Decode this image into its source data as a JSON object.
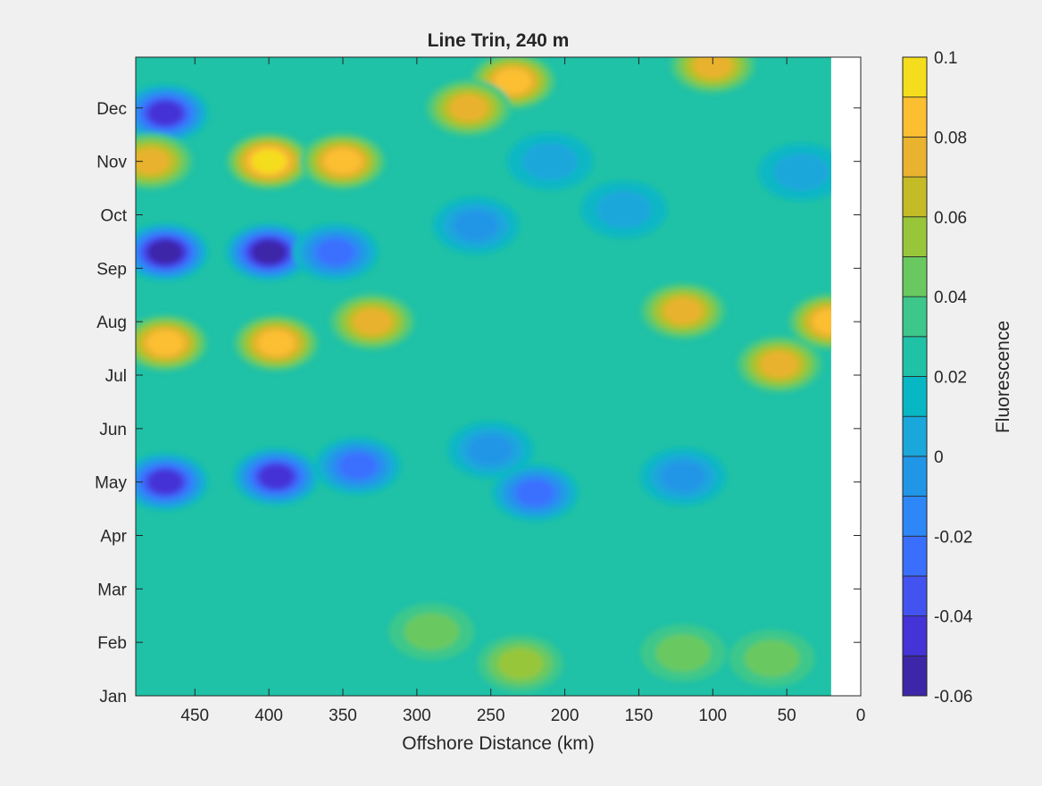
{
  "chart_data": {
    "type": "heatmap",
    "title": "Line Trin, 240 m",
    "xlabel": "Offshore Distance (km)",
    "ylabel": "",
    "x_direction": "reversed",
    "xlim": [
      0,
      490
    ],
    "x_ticks": [
      450,
      400,
      350,
      300,
      250,
      200,
      150,
      100,
      50,
      0
    ],
    "y_ticks": [
      "Jan",
      "Feb",
      "Mar",
      "Apr",
      "May",
      "Jun",
      "Jul",
      "Aug",
      "Sep",
      "Oct",
      "Nov",
      "Dec"
    ],
    "data_x_extent": [
      20,
      490
    ],
    "colorbar": {
      "label": "Fluorescence",
      "clim": [
        -0.06,
        0.1
      ],
      "ticks": [
        0.1,
        0.08,
        0.06,
        0.04,
        0.02,
        0,
        -0.02,
        -0.04,
        -0.06
      ],
      "levels": [
        -0.06,
        -0.05,
        -0.04,
        -0.03,
        -0.02,
        -0.01,
        0,
        0.01,
        0.02,
        0.03,
        0.04,
        0.05,
        0.06,
        0.07,
        0.08,
        0.09,
        0.1
      ],
      "colormap": [
        "#3e26a8",
        "#4433d6",
        "#4353ef",
        "#3a6ffe",
        "#2d87f7",
        "#2196e6",
        "#1aa7db",
        "#07b7c4",
        "#1fc1a7",
        "#3dc78b",
        "#69c960",
        "#98c63b",
        "#c4bb26",
        "#e9b22f",
        "#fcbf32",
        "#f4dd1c"
      ]
    },
    "features": [
      {
        "x": 470,
        "month": 10.9,
        "value": -0.04
      },
      {
        "x": 470,
        "month": 8.3,
        "value": -0.05
      },
      {
        "x": 400,
        "month": 8.3,
        "value": -0.06
      },
      {
        "x": 355,
        "month": 8.3,
        "value": -0.02
      },
      {
        "x": 400,
        "month": 10.0,
        "value": 0.09
      },
      {
        "x": 350,
        "month": 10.0,
        "value": 0.08
      },
      {
        "x": 480,
        "month": 10.0,
        "value": 0.07
      },
      {
        "x": 470,
        "month": 6.6,
        "value": 0.08
      },
      {
        "x": 395,
        "month": 6.6,
        "value": 0.08
      },
      {
        "x": 330,
        "month": 7.0,
        "value": 0.07
      },
      {
        "x": 470,
        "month": 4.0,
        "value": -0.04
      },
      {
        "x": 395,
        "month": 4.1,
        "value": -0.04
      },
      {
        "x": 340,
        "month": 4.3,
        "value": -0.02
      },
      {
        "x": 235,
        "month": 11.5,
        "value": 0.08
      },
      {
        "x": 265,
        "month": 11.0,
        "value": 0.07
      },
      {
        "x": 100,
        "month": 11.8,
        "value": 0.07
      },
      {
        "x": 55,
        "month": 6.2,
        "value": 0.07
      },
      {
        "x": 20,
        "month": 7.0,
        "value": 0.08
      },
      {
        "x": 120,
        "month": 7.2,
        "value": 0.07
      },
      {
        "x": 160,
        "month": 9.1,
        "value": 0.01
      },
      {
        "x": 210,
        "month": 10.0,
        "value": 0.01
      },
      {
        "x": 40,
        "month": 9.8,
        "value": 0.01
      },
      {
        "x": 260,
        "month": 8.8,
        "value": 0.0
      },
      {
        "x": 250,
        "month": 4.6,
        "value": 0.0
      },
      {
        "x": 120,
        "month": 4.1,
        "value": 0.0
      },
      {
        "x": 220,
        "month": 3.8,
        "value": -0.02
      },
      {
        "x": 290,
        "month": 1.2,
        "value": 0.04
      },
      {
        "x": 230,
        "month": 0.6,
        "value": 0.05
      },
      {
        "x": 120,
        "month": 0.8,
        "value": 0.04
      },
      {
        "x": 60,
        "month": 0.7,
        "value": 0.04
      }
    ]
  }
}
